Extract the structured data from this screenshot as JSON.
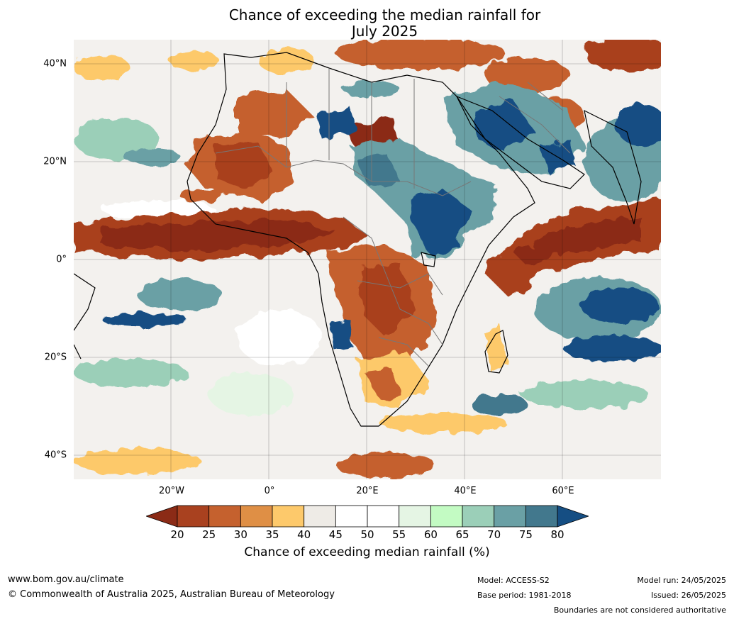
{
  "title": {
    "line1": "Chance of exceeding the median rainfall for",
    "line2": "July 2025"
  },
  "map": {
    "region": "Africa",
    "lat_labels": [
      "40°N",
      "20°N",
      "0°",
      "20°S",
      "40°S"
    ],
    "lon_labels": [
      "20°W",
      "0°",
      "20°E",
      "40°E",
      "60°E"
    ],
    "grid": true
  },
  "colorbar": {
    "label": "Chance of exceeding median rainfall (%)",
    "ticks": [
      "20",
      "25",
      "30",
      "35",
      "40",
      "45",
      "50",
      "55",
      "60",
      "65",
      "70",
      "75",
      "80"
    ],
    "colors": [
      "#8b2b16",
      "#a9411f",
      "#c5612e",
      "#df8f45",
      "#fdc96b",
      "#eeebe6",
      "#ffffff",
      "#ffffff",
      "#e5f5e4",
      "#c3fbc3",
      "#9bcfb8",
      "#6aa0a5",
      "#42788d",
      "#154e83"
    ]
  },
  "footer": {
    "url": "www.bom.gov.au/climate",
    "copyright": "© Commonwealth of Australia 2025, Australian Bureau of Meteorology",
    "model": "Model: ACCESS-S2",
    "base_period": "Base period: 1981-2018",
    "model_run": "Model run: 24/05/2025",
    "issued": "Issued: 26/05/2025",
    "disclaimer": "Boundaries are not considered authoritative"
  }
}
